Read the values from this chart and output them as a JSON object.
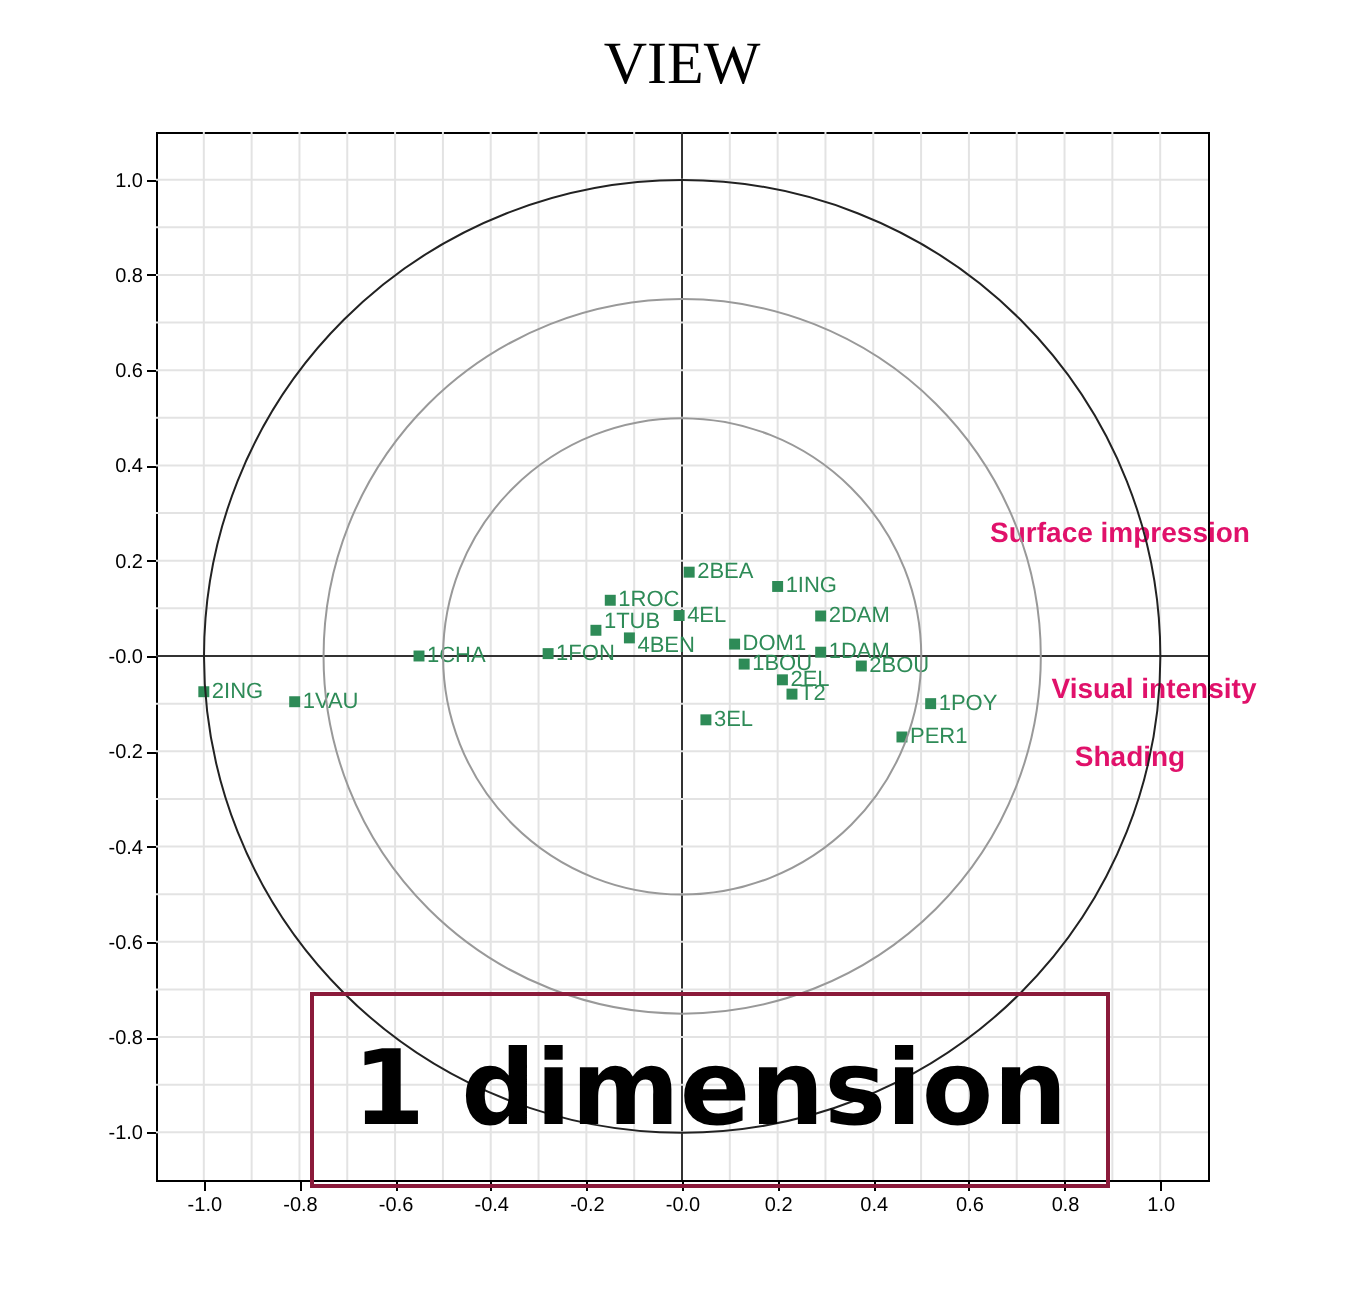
{
  "chart_data": {
    "type": "scatter",
    "title": "VIEW",
    "grid": true,
    "legend": false,
    "marker": "square",
    "xlim": [
      -1.1,
      1.1
    ],
    "ylim": [
      -1.1,
      1.1
    ],
    "xticks": [
      {
        "value": -1.0,
        "label": "-1.0"
      },
      {
        "value": -0.9,
        "label": null
      },
      {
        "value": -0.8,
        "label": "-0.8"
      },
      {
        "value": -0.7,
        "label": null
      },
      {
        "value": -0.6,
        "label": "-0.6"
      },
      {
        "value": -0.5,
        "label": null
      },
      {
        "value": -0.4,
        "label": "-0.4"
      },
      {
        "value": -0.3,
        "label": null
      },
      {
        "value": -0.2,
        "label": "-0.2"
      },
      {
        "value": -0.1,
        "label": null
      },
      {
        "value": 0,
        "label": "-0.0"
      },
      {
        "value": 0.1,
        "label": null
      },
      {
        "value": 0.2,
        "label": "0.2"
      },
      {
        "value": 0.3,
        "label": null
      },
      {
        "value": 0.4,
        "label": "0.4"
      },
      {
        "value": 0.5,
        "label": null
      },
      {
        "value": 0.6,
        "label": "0.6"
      },
      {
        "value": 0.7,
        "label": null
      },
      {
        "value": 0.8,
        "label": "0.8"
      },
      {
        "value": 0.9,
        "label": null
      },
      {
        "value": 1.0,
        "label": "1.0"
      }
    ],
    "yticks": [
      {
        "value": -1.0,
        "label": "-1.0"
      },
      {
        "value": -0.9,
        "label": null
      },
      {
        "value": -0.8,
        "label": "-0.8"
      },
      {
        "value": -0.7,
        "label": null
      },
      {
        "value": -0.6,
        "label": "-0.6"
      },
      {
        "value": -0.5,
        "label": null
      },
      {
        "value": -0.4,
        "label": "-0.4"
      },
      {
        "value": -0.3,
        "label": null
      },
      {
        "value": -0.2,
        "label": "-0.2"
      },
      {
        "value": -0.1,
        "label": null
      },
      {
        "value": 0,
        "label": "-0.0"
      },
      {
        "value": 0.1,
        "label": null
      },
      {
        "value": 0.2,
        "label": "0.2"
      },
      {
        "value": 0.3,
        "label": null
      },
      {
        "value": 0.4,
        "label": "0.4"
      },
      {
        "value": 0.5,
        "label": null
      },
      {
        "value": 0.6,
        "label": "0.6"
      },
      {
        "value": 0.7,
        "label": null
      },
      {
        "value": 0.8,
        "label": "0.8"
      },
      {
        "value": 0.9,
        "label": null
      },
      {
        "value": 1.0,
        "label": "1.0"
      }
    ],
    "series": [
      {
        "name": "2ING",
        "color": "#2e8b57",
        "x": [
          -1.0
        ],
        "values": [
          -0.075
        ]
      },
      {
        "name": "1VAU",
        "color": "#2e8b57",
        "x": [
          -0.81
        ],
        "values": [
          -0.096
        ]
      },
      {
        "name": "1CHA",
        "color": "#2e8b57",
        "x": [
          -0.55
        ],
        "values": [
          0.0
        ]
      },
      {
        "name": "1FON",
        "color": "#2e8b57",
        "x": [
          -0.28
        ],
        "values": [
          0.005
        ]
      },
      {
        "name": "1ROC",
        "color": "#2e8b57",
        "x": [
          -0.15
        ],
        "values": [
          0.117
        ]
      },
      {
        "name": "1TUB",
        "color": "#2e8b57",
        "x": [
          -0.18
        ],
        "values": [
          0.054
        ]
      },
      {
        "name": "4BEN",
        "color": "#2e8b57",
        "x": [
          -0.11
        ],
        "values": [
          0.038
        ]
      },
      {
        "name": "4EL",
        "color": "#2e8b57",
        "x": [
          -0.006
        ],
        "values": [
          0.085
        ]
      },
      {
        "name": "2BEA",
        "color": "#2e8b57",
        "x": [
          0.015
        ],
        "values": [
          0.176
        ]
      },
      {
        "name": "1ING",
        "color": "#2e8b57",
        "x": [
          0.2
        ],
        "values": [
          0.146
        ]
      },
      {
        "name": "2DAM",
        "color": "#2e8b57",
        "x": [
          0.29
        ],
        "values": [
          0.084
        ]
      },
      {
        "name": "DOM1",
        "color": "#2e8b57",
        "x": [
          0.11
        ],
        "values": [
          0.025
        ]
      },
      {
        "name": "1DAM",
        "color": "#2e8b57",
        "x": [
          0.29
        ],
        "values": [
          0.008
        ]
      },
      {
        "name": "1BOU",
        "color": "#2e8b57",
        "x": [
          0.13
        ],
        "values": [
          -0.017
        ]
      },
      {
        "name": "2EL",
        "color": "#2e8b57",
        "x": [
          0.21
        ],
        "values": [
          -0.05
        ]
      },
      {
        "name": "T2",
        "color": "#2e8b57",
        "x": [
          0.23
        ],
        "values": [
          -0.08
        ]
      },
      {
        "name": "2BOU",
        "color": "#2e8b57",
        "x": [
          0.375
        ],
        "values": [
          -0.021
        ]
      },
      {
        "name": "3EL",
        "color": "#2e8b57",
        "x": [
          0.05
        ],
        "values": [
          -0.134
        ]
      },
      {
        "name": "1POY",
        "color": "#2e8b57",
        "x": [
          0.52
        ],
        "values": [
          -0.1
        ]
      },
      {
        "name": "PER1",
        "color": "#2e8b57",
        "x": [
          0.46
        ],
        "values": [
          -0.17
        ]
      }
    ],
    "annotations": [
      "Surface impression",
      "Visual intensity",
      "Shading",
      "1 dimension"
    ]
  }
}
